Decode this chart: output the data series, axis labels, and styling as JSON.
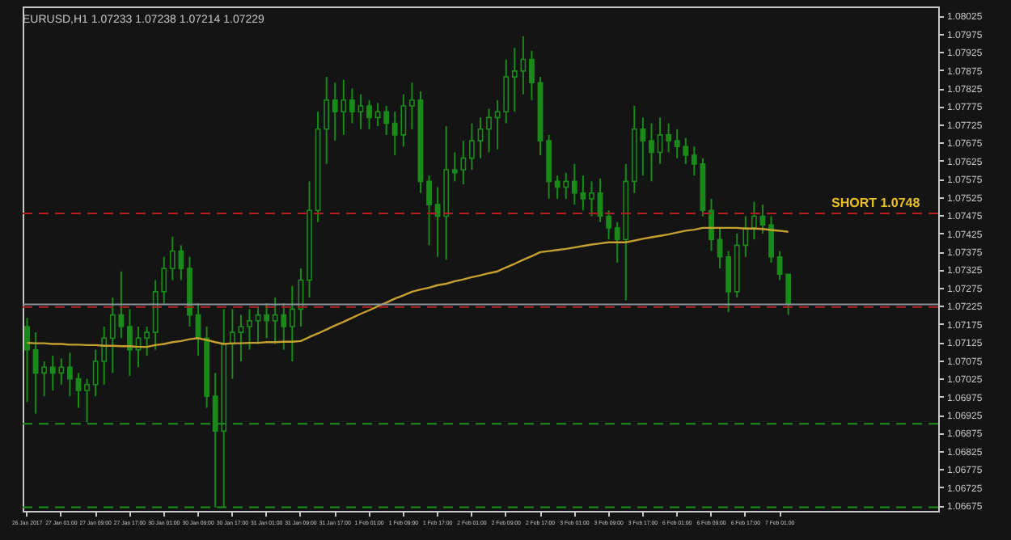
{
  "chart_data": {
    "type": "candlestick",
    "title": "EURUSD,H1 1.07233 1.07238 1.07214 1.07229",
    "categories": [
      "26 Jan 2017",
      null,
      null,
      null,
      "27 Jan 01:00",
      null,
      null,
      null,
      "27 Jan 09:00",
      null,
      null,
      null,
      "27 Jan 17:00",
      null,
      null,
      null,
      "30 Jan 01:00",
      null,
      null,
      null,
      "30 Jan 09:00",
      null,
      null,
      null,
      "30 Jan 17:00",
      null,
      null,
      null,
      "31 Jan 01:00",
      null,
      null,
      null,
      "31 Jan 09:00",
      null,
      null,
      null,
      "31 Jan 17:00",
      null,
      null,
      null,
      "1 Feb 01:00",
      null,
      null,
      null,
      "1 Feb 09:00",
      null,
      null,
      null,
      "1 Feb 17:00",
      null,
      null,
      null,
      "2 Feb 01:00",
      null,
      null,
      null,
      "2 Feb 09:00",
      null,
      null,
      null,
      "2 Feb 17:00",
      null,
      null,
      null,
      "3 Feb 01:00",
      null,
      null,
      null,
      "3 Feb 09:00",
      null,
      null,
      null,
      "3 Feb 17:00",
      null,
      null,
      null,
      "6 Feb 01:00",
      null,
      null,
      null,
      "6 Feb 09:00",
      null,
      null,
      null,
      "6 Feb 17:00",
      null,
      null,
      null,
      "7 Feb 01:00",
      null,
      null,
      null,
      null,
      null,
      null,
      null,
      null,
      null,
      null,
      null,
      null,
      null,
      null,
      null,
      null,
      null,
      null
    ],
    "series": [
      {
        "color": "#1a8a1a",
        "ohlc": [
          [
            1.07168,
            1.07192,
            1.0696,
            1.07104
          ],
          [
            1.07104,
            1.07152,
            1.06928,
            1.0704
          ],
          [
            1.0704,
            1.07072,
            1.06976,
            1.07056
          ],
          [
            1.07056,
            1.07088,
            1.06992,
            1.0704
          ],
          [
            1.0704,
            1.0708,
            1.07008,
            1.07056
          ],
          [
            1.07056,
            1.07096,
            1.06976,
            1.07024
          ],
          [
            1.07024,
            1.0704,
            1.06944,
            1.06992
          ],
          [
            1.06992,
            1.07024,
            1.06904,
            1.07008
          ],
          [
            1.07008,
            1.07104,
            1.06976,
            1.07072
          ],
          [
            1.07072,
            1.07168,
            1.07008,
            1.07136
          ],
          [
            1.07136,
            1.07248,
            1.0704,
            1.072
          ],
          [
            1.072,
            1.0732,
            1.07136,
            1.07168
          ],
          [
            1.07168,
            1.07216,
            1.07032,
            1.07104
          ],
          [
            1.07104,
            1.07168,
            1.07056,
            1.07136
          ],
          [
            1.07136,
            1.07168,
            1.07088,
            1.07152
          ],
          [
            1.07152,
            1.07296,
            1.07104,
            1.07264
          ],
          [
            1.07264,
            1.0736,
            1.07232,
            1.07328
          ],
          [
            1.07328,
            1.07416,
            1.07296,
            1.07376
          ],
          [
            1.07376,
            1.07392,
            1.07296,
            1.07328
          ],
          [
            1.07328,
            1.0736,
            1.07168,
            1.072
          ],
          [
            1.072,
            1.07232,
            1.07088,
            1.07136
          ],
          [
            1.07136,
            1.07168,
            1.06944,
            1.06976
          ],
          [
            1.06976,
            1.0704,
            1.06669,
            1.0688
          ],
          [
            1.0688,
            1.07216,
            1.06672,
            1.0712
          ],
          [
            1.0712,
            1.07216,
            1.07024,
            1.07152
          ],
          [
            1.07152,
            1.072,
            1.07072,
            1.07168
          ],
          [
            1.07168,
            1.07216,
            1.07104,
            1.07184
          ],
          [
            1.07184,
            1.07224,
            1.0712,
            1.072
          ],
          [
            1.072,
            1.07232,
            1.07136,
            1.07184
          ],
          [
            1.07184,
            1.07248,
            1.0712,
            1.072
          ],
          [
            1.072,
            1.07232,
            1.07104,
            1.07168
          ],
          [
            1.07168,
            1.0728,
            1.07072,
            1.07216
          ],
          [
            1.07216,
            1.07328,
            1.07168,
            1.07296
          ],
          [
            1.07296,
            1.07568,
            1.07248,
            1.07488
          ],
          [
            1.07488,
            1.0776,
            1.07456,
            1.07712
          ],
          [
            1.07712,
            1.07856,
            1.07616,
            1.07792
          ],
          [
            1.07792,
            1.0784,
            1.0768,
            1.0776
          ],
          [
            1.0776,
            1.07848,
            1.07696,
            1.07792
          ],
          [
            1.07792,
            1.07824,
            1.07728,
            1.0776
          ],
          [
            1.0776,
            1.07808,
            1.07712,
            1.07776
          ],
          [
            1.07776,
            1.07792,
            1.07712,
            1.07744
          ],
          [
            1.07744,
            1.07784,
            1.0772,
            1.0776
          ],
          [
            1.0776,
            1.07776,
            1.07696,
            1.07728
          ],
          [
            1.07728,
            1.0776,
            1.0764,
            1.07696
          ],
          [
            1.07696,
            1.07808,
            1.07664,
            1.07776
          ],
          [
            1.07776,
            1.0784,
            1.07712,
            1.07792
          ],
          [
            1.07792,
            1.07816,
            1.07536,
            1.07568
          ],
          [
            1.07568,
            1.07584,
            1.07392,
            1.07504
          ],
          [
            1.07504,
            1.07552,
            1.0736,
            1.07472
          ],
          [
            1.07472,
            1.0772,
            1.07352,
            1.076
          ],
          [
            1.076,
            1.07648,
            1.07568,
            1.07592
          ],
          [
            1.076,
            1.0768,
            1.0756,
            1.07632
          ],
          [
            1.07632,
            1.07728,
            1.076,
            1.0768
          ],
          [
            1.0768,
            1.07744,
            1.07632,
            1.07712
          ],
          [
            1.07712,
            1.07768,
            1.07648,
            1.07744
          ],
          [
            1.07744,
            1.07792,
            1.07656,
            1.0776
          ],
          [
            1.0776,
            1.07904,
            1.07728,
            1.07856
          ],
          [
            1.07856,
            1.07936,
            1.0776,
            1.07872
          ],
          [
            1.07872,
            1.07968,
            1.07808,
            1.07904
          ],
          [
            1.07904,
            1.07928,
            1.07792,
            1.0784
          ],
          [
            1.0784,
            1.07856,
            1.0764,
            1.0768
          ],
          [
            1.0768,
            1.07696,
            1.0752,
            1.07568
          ],
          [
            1.07568,
            1.07584,
            1.0752,
            1.07552
          ],
          [
            1.07552,
            1.07592,
            1.0752,
            1.07568
          ],
          [
            1.07568,
            1.07616,
            1.07504,
            1.07536
          ],
          [
            1.07536,
            1.07584,
            1.07488,
            1.0752
          ],
          [
            1.0752,
            1.07568,
            1.07472,
            1.07536
          ],
          [
            1.07536,
            1.07576,
            1.07456,
            1.07472
          ],
          [
            1.07472,
            1.07488,
            1.07408,
            1.0744
          ],
          [
            1.0744,
            1.07456,
            1.07344,
            1.07408
          ],
          [
            1.07408,
            1.07616,
            1.0724,
            1.07568
          ],
          [
            1.07568,
            1.07776,
            1.07536,
            1.07712
          ],
          [
            1.07712,
            1.07744,
            1.07584,
            1.0768
          ],
          [
            1.0768,
            1.07728,
            1.07568,
            1.07648
          ],
          [
            1.07648,
            1.07744,
            1.07616,
            1.07696
          ],
          [
            1.07696,
            1.07728,
            1.07648,
            1.0768
          ],
          [
            1.0768,
            1.07712,
            1.07632,
            1.07664
          ],
          [
            1.07664,
            1.07688,
            1.07616,
            1.0764
          ],
          [
            1.0764,
            1.07664,
            1.07584,
            1.07616
          ],
          [
            1.07616,
            1.07632,
            1.07472,
            1.07488
          ],
          [
            1.07488,
            1.0752,
            1.07376,
            1.07408
          ],
          [
            1.07408,
            1.0744,
            1.07328,
            1.0736
          ],
          [
            1.0736,
            1.07376,
            1.07208,
            1.07264
          ],
          [
            1.07264,
            1.07424,
            1.07248,
            1.07392
          ],
          [
            1.07392,
            1.07472,
            1.0736,
            1.0744
          ],
          [
            1.0744,
            1.07512,
            1.07408,
            1.07472
          ],
          [
            1.07472,
            1.07504,
            1.07424,
            1.07448
          ],
          [
            1.07448,
            1.07472,
            1.07344,
            1.0736
          ],
          [
            1.0736,
            1.07376,
            1.07296,
            1.07312
          ],
          [
            1.07312,
            1.07312,
            1.072,
            1.07232
          ],
          null,
          null,
          null,
          null,
          null,
          null,
          null,
          null,
          null,
          null,
          null,
          null,
          null,
          null,
          null,
          null,
          null
        ]
      },
      {
        "type": "line",
        "color": "#c8a030",
        "values": [
          1.07123,
          1.07122,
          1.07122,
          1.0712,
          1.0712,
          1.07118,
          1.07118,
          1.07117,
          1.07117,
          1.07115,
          1.07115,
          1.07114,
          1.07114,
          1.07112,
          1.07112,
          1.07117,
          1.0712,
          1.07125,
          1.07128,
          1.07133,
          1.07136,
          1.07131,
          1.07125,
          1.0712,
          1.07122,
          1.07122,
          1.07123,
          1.07123,
          1.07125,
          1.07125,
          1.07126,
          1.07126,
          1.07128,
          1.07139,
          1.07149,
          1.0716,
          1.07171,
          1.07181,
          1.07192,
          1.07203,
          1.07213,
          1.07224,
          1.07234,
          1.07245,
          1.07254,
          1.07264,
          1.0727,
          1.07275,
          1.07282,
          1.07286,
          1.07293,
          1.07298,
          1.07304,
          1.07309,
          1.07315,
          1.0732,
          1.07331,
          1.07341,
          1.07352,
          1.07362,
          1.07373,
          1.07376,
          1.07379,
          1.07382,
          1.07386,
          1.0739,
          1.07394,
          1.07397,
          1.074,
          1.074,
          1.074,
          1.07405,
          1.0741,
          1.07414,
          1.07418,
          1.07422,
          1.07427,
          1.07432,
          1.07435,
          1.0744,
          1.0744,
          1.0744,
          1.0744,
          1.0744,
          1.07438,
          1.07438,
          1.07437,
          1.07434,
          1.07432,
          1.07429,
          null,
          null,
          null,
          null,
          null,
          null,
          null,
          null,
          null,
          null,
          null,
          null,
          null,
          null,
          null,
          null,
          null
        ]
      }
    ],
    "ylim": [
      1.0666,
      1.0805
    ],
    "yticks": [
      1.08025,
      1.07975,
      1.07925,
      1.07875,
      1.07825,
      1.07775,
      1.07725,
      1.07675,
      1.07625,
      1.07575,
      1.07525,
      1.07475,
      1.07425,
      1.07375,
      1.07325,
      1.07275,
      1.07225,
      1.07175,
      1.07125,
      1.07075,
      1.07025,
      1.06975,
      1.06925,
      1.06875,
      1.06825,
      1.06775,
      1.06725,
      1.06675
    ],
    "ref_lines": [
      {
        "axis": "y",
        "value": 1.07229,
        "color": "#8a96a0",
        "line_style": "solid"
      },
      {
        "axis": "y",
        "value": 1.0748,
        "label": "SHORT 1.0748",
        "color": "#b02020",
        "line_style": "dashed"
      },
      {
        "axis": "y",
        "value": 1.07222,
        "color": "#b02020",
        "line_style": "dashed"
      },
      {
        "axis": "y",
        "value": 1.069,
        "color": "#1f8f1f",
        "line_style": "dashed"
      },
      {
        "axis": "y",
        "value": 1.0667,
        "color": "#1f8f1f",
        "line_style": "dashed"
      }
    ],
    "grid": false
  }
}
